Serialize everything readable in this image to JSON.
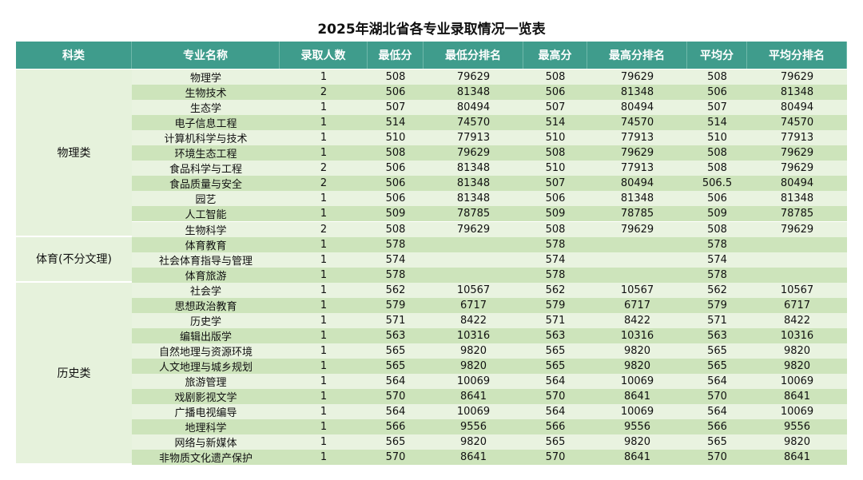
{
  "title": "2025年湖北省各专业录取情况一览表",
  "table": {
    "header": [
      "科类",
      "专业名称",
      "录取人数",
      "最低分",
      "最低分排名",
      "最高分",
      "最高分排名",
      "平均分",
      "平均分排名"
    ],
    "groups": [
      {
        "category": "物理类",
        "rows": [
          [
            "物理学",
            1,
            508,
            79629,
            508,
            79629,
            508,
            79629
          ],
          [
            "生物技术",
            2,
            506,
            81348,
            506,
            81348,
            506,
            81348
          ],
          [
            "生态学",
            1,
            507,
            80494,
            507,
            80494,
            507,
            80494
          ],
          [
            "电子信息工程",
            1,
            514,
            74570,
            514,
            74570,
            514,
            74570
          ],
          [
            "计算机科学与技术",
            1,
            510,
            77913,
            510,
            77913,
            510,
            77913
          ],
          [
            "环境生态工程",
            1,
            508,
            79629,
            508,
            79629,
            508,
            79629
          ],
          [
            "食品科学与工程",
            2,
            506,
            81348,
            510,
            77913,
            508,
            79629
          ],
          [
            "食品质量与安全",
            2,
            506,
            81348,
            507,
            80494,
            506.5,
            80494
          ],
          [
            "园艺",
            1,
            506,
            81348,
            506,
            81348,
            506,
            81348
          ],
          [
            "人工智能",
            1,
            509,
            78785,
            509,
            78785,
            509,
            78785
          ],
          [
            "生物科学",
            2,
            508,
            79629,
            508,
            79629,
            508,
            79629
          ]
        ]
      },
      {
        "category": "体育(不分文理)",
        "rows": [
          [
            "体育教育",
            1,
            578,
            null,
            578,
            null,
            578,
            null
          ],
          [
            "社会体育指导与管理",
            1,
            574,
            null,
            574,
            null,
            574,
            null
          ],
          [
            "体育旅游",
            1,
            578,
            null,
            578,
            null,
            578,
            null
          ]
        ]
      },
      {
        "category": "历史类",
        "rows": [
          [
            "社会学",
            1,
            562,
            10567,
            562,
            10567,
            562,
            10567
          ],
          [
            "思想政治教育",
            1,
            579,
            6717,
            579,
            6717,
            579,
            6717
          ],
          [
            "历史学",
            1,
            571,
            8422,
            571,
            8422,
            571,
            8422
          ],
          [
            "编辑出版学",
            1,
            563,
            10316,
            563,
            10316,
            563,
            10316
          ],
          [
            "自然地理与资源环境",
            1,
            565,
            9820,
            565,
            9820,
            565,
            9820
          ],
          [
            "人文地理与城乡规划",
            1,
            565,
            9820,
            565,
            9820,
            565,
            9820
          ],
          [
            "旅游管理",
            1,
            564,
            10069,
            564,
            10069,
            564,
            10069
          ],
          [
            "戏剧影视文学",
            1,
            570,
            8641,
            570,
            8641,
            570,
            8641
          ],
          [
            "广播电视编导",
            1,
            564,
            10069,
            564,
            10069,
            564,
            10069
          ],
          [
            "地理科学",
            1,
            566,
            9556,
            566,
            9556,
            566,
            9556
          ],
          [
            "网络与新媒体",
            1,
            565,
            9820,
            565,
            9820,
            565,
            9820
          ],
          [
            "非物质文化遗产保护",
            1,
            570,
            8641,
            570,
            8641,
            570,
            8641
          ]
        ]
      }
    ]
  }
}
